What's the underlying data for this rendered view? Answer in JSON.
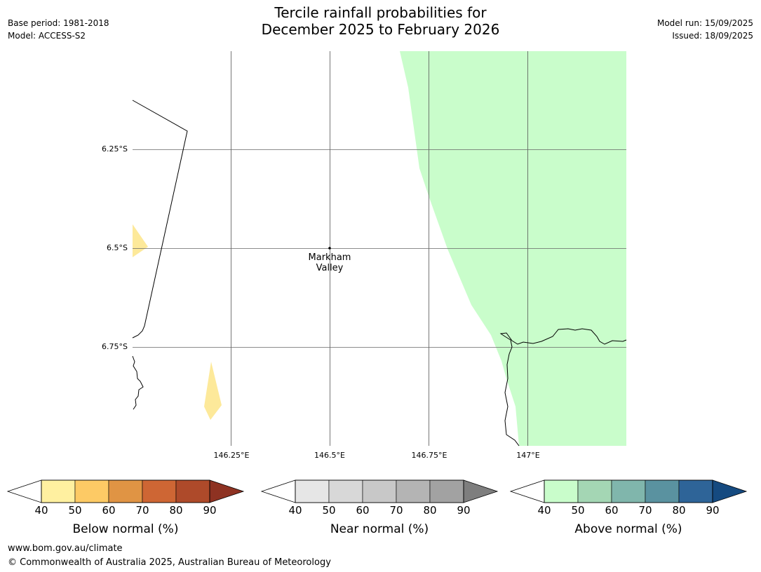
{
  "header": {
    "title_line1": "Tercile rainfall probabilities for",
    "title_line2": "December 2025 to February 2026",
    "base_period": "Base period: 1981-2018",
    "model": "Model: ACCESS-S2",
    "model_run": "Model run: 15/09/2025",
    "issued": "Issued: 18/09/2025"
  },
  "map": {
    "lat_labels": [
      "6.25°S",
      "6.5°S",
      "6.75°S"
    ],
    "lon_labels": [
      "146.25°E",
      "146.5°E",
      "146.75°E",
      "147°E"
    ],
    "location": {
      "name_line1": "Markham",
      "name_line2": "Valley"
    }
  },
  "colorbars": [
    {
      "title": "Below normal (%)",
      "ticks": [
        "40",
        "50",
        "60",
        "70",
        "80",
        "90"
      ],
      "colors": [
        "#fff0a0",
        "#fdca65",
        "#e09444",
        "#ce6634",
        "#ae4a2a"
      ],
      "extend_color": "#8e3222"
    },
    {
      "title": "Near normal (%)",
      "ticks": [
        "40",
        "50",
        "60",
        "70",
        "80",
        "90"
      ],
      "colors": [
        "#e6e6e6",
        "#d8d8d8",
        "#c8c8c8",
        "#b4b4b4",
        "#a2a2a2"
      ],
      "extend_color": "#7e7e7e"
    },
    {
      "title": "Above normal (%)",
      "ticks": [
        "40",
        "50",
        "60",
        "70",
        "80",
        "90"
      ],
      "colors": [
        "#c9fdcb",
        "#a4d6b4",
        "#80b6ac",
        "#5a92a0",
        "#2e6498"
      ],
      "extend_color": "#154a80"
    }
  ],
  "footer": {
    "url": "www.bom.gov.au/climate",
    "copyright": "© Commonwealth of Australia 2025, Australian Bureau of Meteorology"
  }
}
